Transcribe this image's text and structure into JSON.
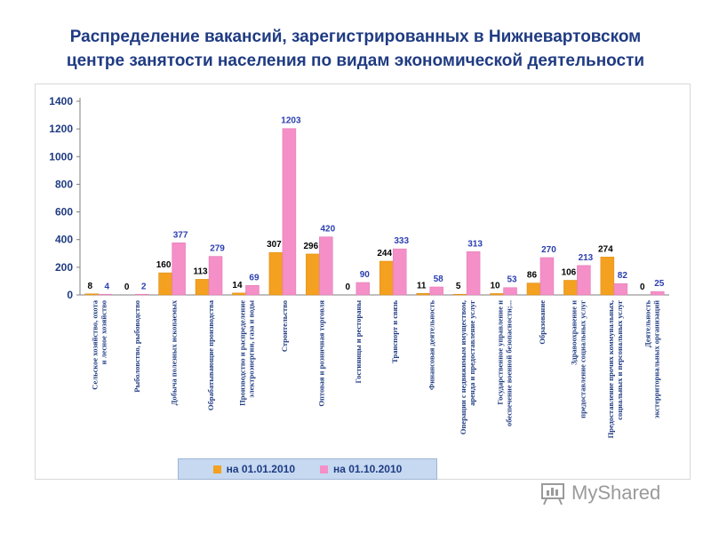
{
  "title_line1": "Распределение вакансий, зарегистрированных в Нижневартовском",
  "title_line2": "центре занятости населения по видам экономической деятельности",
  "watermark": "MyShared",
  "colors": {
    "series_2010_01": "#f4a020",
    "series_2010_10": "#f48fc8",
    "title": "#1f3b82"
  },
  "chart_data": {
    "type": "bar",
    "ylim": [
      0,
      1400
    ],
    "yticks": [
      0,
      200,
      400,
      600,
      800,
      1000,
      1200,
      1400
    ],
    "grid": false,
    "legend": "bottom",
    "categories": [
      "Сельское хозяйство, охота и лесное хозяйство",
      "Рыболовство, рыбоводство",
      "Добыча полезных ископаемых",
      "Обрабатывающие производства",
      "Производство и распределение электроэнергии, газа и воды",
      "Строительство",
      "Оптовая и розничная торговля",
      "Гостиницы и рестораны",
      "Транспорт и связь",
      "Финансовая деятельность",
      "Операции с недвижимым имуществом, аренда и предоставление услуг",
      "Государственное управление и обеспечение военной безопасности;...",
      "Образование",
      "Здравоохранение и предоставление социальных услуг",
      "Предоставление прочих коммунальных, социальных и персональных услуг",
      "Деятельность экстерриториальных организаций"
    ],
    "series": [
      {
        "name": "на 01.01.2010",
        "values": [
          8,
          0,
          160,
          113,
          14,
          307,
          296,
          0,
          244,
          11,
          5,
          10,
          86,
          106,
          274,
          0
        ]
      },
      {
        "name": "на 01.10.2010",
        "values": [
          4,
          2,
          377,
          279,
          69,
          1203,
          420,
          90,
          333,
          58,
          313,
          53,
          270,
          213,
          82,
          25
        ]
      }
    ]
  }
}
